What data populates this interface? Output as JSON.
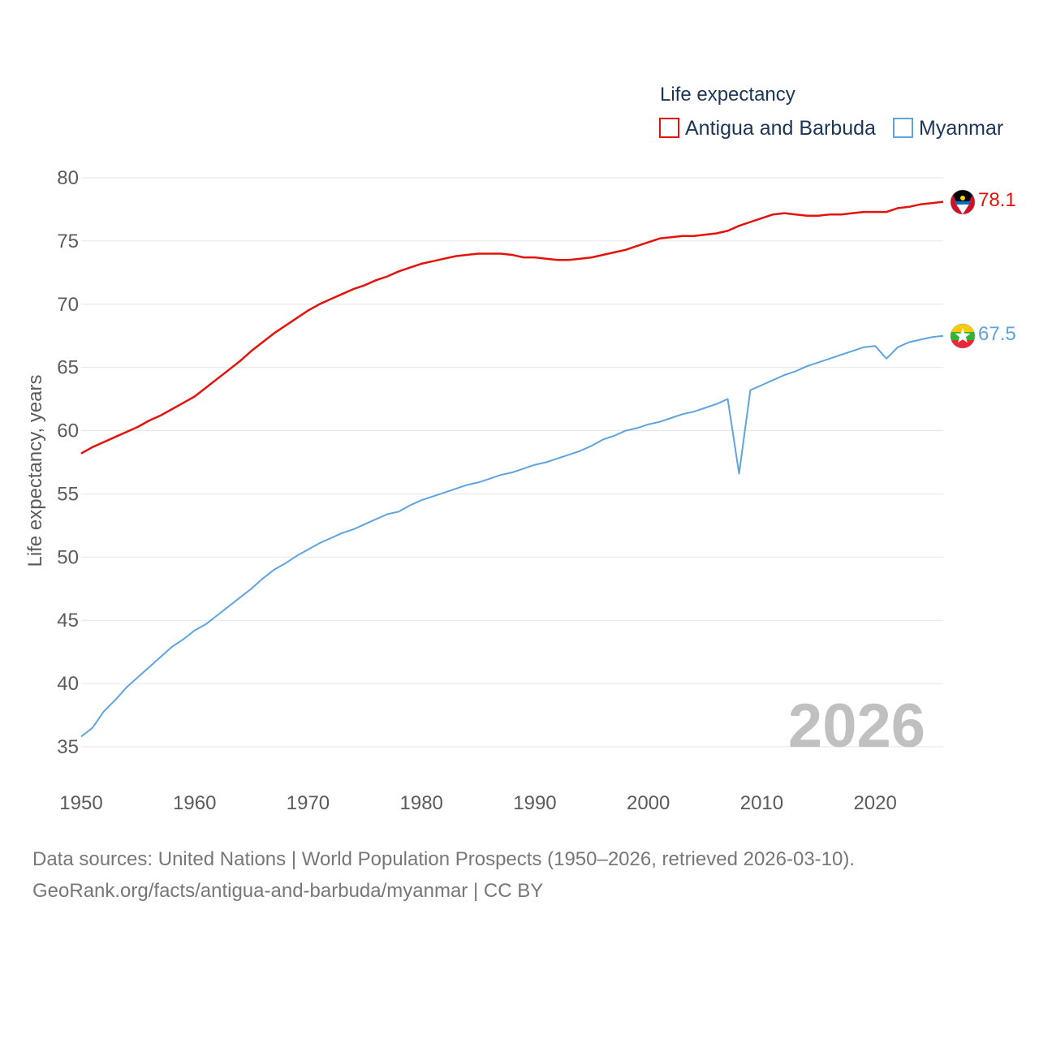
{
  "chart_data": {
    "type": "line",
    "legend_title": "Life expectancy",
    "ylabel": "Life expectancy, years",
    "xlabel": "",
    "xlim": [
      1950,
      2026
    ],
    "ylim": [
      35,
      80
    ],
    "x_ticks": [
      "1950",
      "1960",
      "1970",
      "1980",
      "1990",
      "2000",
      "2010",
      "2020"
    ],
    "y_ticks": [
      "35",
      "40",
      "45",
      "50",
      "55",
      "60",
      "65",
      "70",
      "75",
      "80"
    ],
    "year_label": "2026",
    "legend_placement": "top-right",
    "x": [
      1950,
      1951,
      1952,
      1953,
      1954,
      1955,
      1956,
      1957,
      1958,
      1959,
      1960,
      1961,
      1962,
      1963,
      1964,
      1965,
      1966,
      1967,
      1968,
      1969,
      1970,
      1971,
      1972,
      1973,
      1974,
      1975,
      1976,
      1977,
      1978,
      1979,
      1980,
      1981,
      1982,
      1983,
      1984,
      1985,
      1986,
      1987,
      1988,
      1989,
      1990,
      1991,
      1992,
      1993,
      1994,
      1995,
      1996,
      1997,
      1998,
      1999,
      2000,
      2001,
      2002,
      2003,
      2004,
      2005,
      2006,
      2007,
      2008,
      2009,
      2010,
      2011,
      2012,
      2013,
      2014,
      2015,
      2016,
      2017,
      2018,
      2019,
      2020,
      2021,
      2022,
      2023,
      2024,
      2025,
      2026
    ],
    "series": [
      {
        "name": "Antigua and Barbuda",
        "color": "#e3120b",
        "end_label": "78.1",
        "values": [
          58.2,
          58.7,
          59.1,
          59.5,
          59.9,
          60.3,
          60.8,
          61.2,
          61.7,
          62.2,
          62.7,
          63.4,
          64.1,
          64.8,
          65.5,
          66.3,
          67.0,
          67.7,
          68.3,
          68.9,
          69.5,
          70.0,
          70.4,
          70.8,
          71.2,
          71.5,
          71.9,
          72.2,
          72.6,
          72.9,
          73.2,
          73.4,
          73.6,
          73.8,
          73.9,
          74.0,
          74.0,
          74.0,
          73.9,
          73.7,
          73.7,
          73.6,
          73.5,
          73.5,
          73.6,
          73.7,
          73.9,
          74.1,
          74.3,
          74.6,
          74.9,
          75.2,
          75.3,
          75.4,
          75.4,
          75.5,
          75.6,
          75.8,
          76.2,
          76.5,
          76.8,
          77.1,
          77.2,
          77.1,
          77.0,
          77.0,
          77.1,
          77.1,
          77.2,
          77.3,
          77.3,
          77.3,
          77.6,
          77.7,
          77.9,
          78.0,
          78.1
        ]
      },
      {
        "name": "Myanmar",
        "color": "#5fa4e0",
        "end_label": "67.5",
        "values": [
          35.8,
          36.5,
          37.8,
          38.7,
          39.7,
          40.5,
          41.3,
          42.1,
          42.9,
          43.5,
          44.2,
          44.7,
          45.4,
          46.1,
          46.8,
          47.5,
          48.3,
          49.0,
          49.5,
          50.1,
          50.6,
          51.1,
          51.5,
          51.9,
          52.2,
          52.6,
          53.0,
          53.4,
          53.6,
          54.1,
          54.5,
          54.8,
          55.1,
          55.4,
          55.7,
          55.9,
          56.2,
          56.5,
          56.7,
          57.0,
          57.3,
          57.5,
          57.8,
          58.1,
          58.4,
          58.8,
          59.3,
          59.6,
          60.0,
          60.2,
          60.5,
          60.7,
          61.0,
          61.3,
          61.5,
          61.8,
          62.1,
          62.5,
          56.6,
          63.2,
          63.6,
          64.0,
          64.4,
          64.7,
          65.1,
          65.4,
          65.7,
          66.0,
          66.3,
          66.6,
          66.7,
          65.7,
          66.6,
          67.0,
          67.2,
          67.4,
          67.5
        ]
      }
    ]
  },
  "source": {
    "line1": "Data sources: United Nations | World Population Prospects (1950–2026, retrieved 2026-03-10).",
    "line2": "GeoRank.org/facts/antigua-and-barbuda/myanmar | CC BY"
  },
  "icons": {
    "flag_1": "antigua-and-barbuda-flag-icon",
    "flag_2": "myanmar-flag-icon"
  }
}
